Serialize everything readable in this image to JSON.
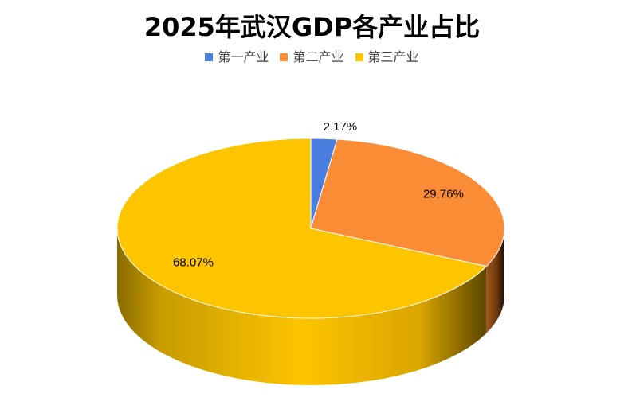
{
  "chart_data": {
    "type": "pie",
    "title": "2025年武汉GDP各产业占比",
    "categories": [
      "第一产业",
      "第二产业",
      "第三产业"
    ],
    "values": [
      2.17,
      29.76,
      68.07
    ],
    "value_labels": [
      "2.17%",
      "29.76%",
      "68.07%"
    ],
    "colors": [
      "#4a7fe0",
      "#fb8c36",
      "#fdc400"
    ],
    "legend_position": "top",
    "style": "3d"
  },
  "legend": {
    "items": [
      {
        "label": "第一产业",
        "color": "#4a7fe0"
      },
      {
        "label": "第二产业",
        "color": "#fb8c36"
      },
      {
        "label": "第三产业",
        "color": "#fdc400"
      }
    ]
  }
}
